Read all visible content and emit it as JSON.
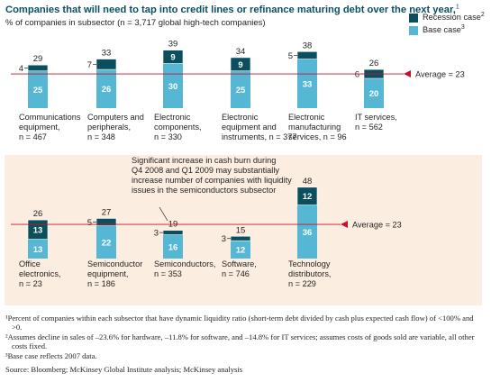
{
  "chart_data": [
    {
      "type": "bar",
      "stacked": true,
      "title": "Companies that will need to tap into credit lines or refinance maturing debt over the next year,",
      "title_footnote": "1",
      "subtitle": "% of companies in subsector (n = 3,717 global high-tech companies)",
      "legend_position": "top-right",
      "series": [
        {
          "name": "Recession case",
          "footnote": "2",
          "color": "#0b4f5e",
          "values": [
            4,
            7,
            9,
            9,
            5,
            6
          ]
        },
        {
          "name": "Base case",
          "footnote": "3",
          "color": "#55b7d3",
          "values": [
            25,
            26,
            30,
            25,
            33,
            20
          ]
        }
      ],
      "totals": [
        29,
        33,
        39,
        34,
        38,
        26
      ],
      "categories": [
        {
          "lines": [
            "Communications",
            "equipment,",
            "n = 467"
          ]
        },
        {
          "lines": [
            "Computers and",
            "peripherals,",
            "n = 348"
          ]
        },
        {
          "lines": [
            "Electronic",
            "components,",
            "n = 330"
          ]
        },
        {
          "lines": [
            "Electronic",
            "equipment and",
            "instruments, n = 377"
          ]
        },
        {
          "lines": [
            "Electronic",
            "manufacturing",
            "services, n = 96"
          ]
        },
        {
          "lines": [
            "IT services,",
            "n = 562"
          ]
        }
      ],
      "average": 23,
      "average_label": "Average = 23",
      "ylim": [
        0,
        40
      ]
    },
    {
      "type": "bar",
      "stacked": true,
      "series": [
        {
          "name": "Recession case",
          "color": "#0b4f5e",
          "values": [
            13,
            5,
            3,
            3,
            12
          ]
        },
        {
          "name": "Base case",
          "color": "#55b7d3",
          "values": [
            13,
            22,
            16,
            12,
            36
          ]
        }
      ],
      "totals": [
        26,
        27,
        19,
        15,
        48
      ],
      "categories": [
        {
          "lines": [
            "Office",
            "electronics,",
            "n = 23"
          ]
        },
        {
          "lines": [
            "Semiconductor",
            "equipment,",
            "n = 186"
          ]
        },
        {
          "lines": [
            "Semiconductors,",
            "n = 353"
          ]
        },
        {
          "lines": [
            "Software,",
            "n = 746"
          ]
        },
        {
          "lines": [
            "Technology",
            "distributors,",
            "n = 229"
          ]
        }
      ],
      "average": 23,
      "average_label": "Average = 23",
      "annotation": [
        "Significant increase in cash burn during",
        "Q4 2008 and Q1 2009 may substantially",
        "increase number of companies with liquidity",
        "issues in the semiconductors subsector"
      ],
      "ylim": [
        0,
        48
      ]
    }
  ],
  "colors": {
    "recession": "#0b4f5e",
    "base": "#55b7d3",
    "average_line": "#c8102e",
    "panel_bg": "#fbeee0"
  },
  "footnotes": [
    "¹Percent of companies within each subsector that have dynamic liquidity ratio (short-term debt divided by cash plus expected cash flow) of <100% and >0.",
    "²Assumes decline in sales of –23.6% for hardware, –11.8% for software, and –14.8% for IT services; assumes costs of goods sold are variable, all other costs fixed.",
    "³Base case reflects 2007 data."
  ],
  "source": "Source: Bloomberg; McKinsey Global Institute analysis; McKinsey analysis"
}
